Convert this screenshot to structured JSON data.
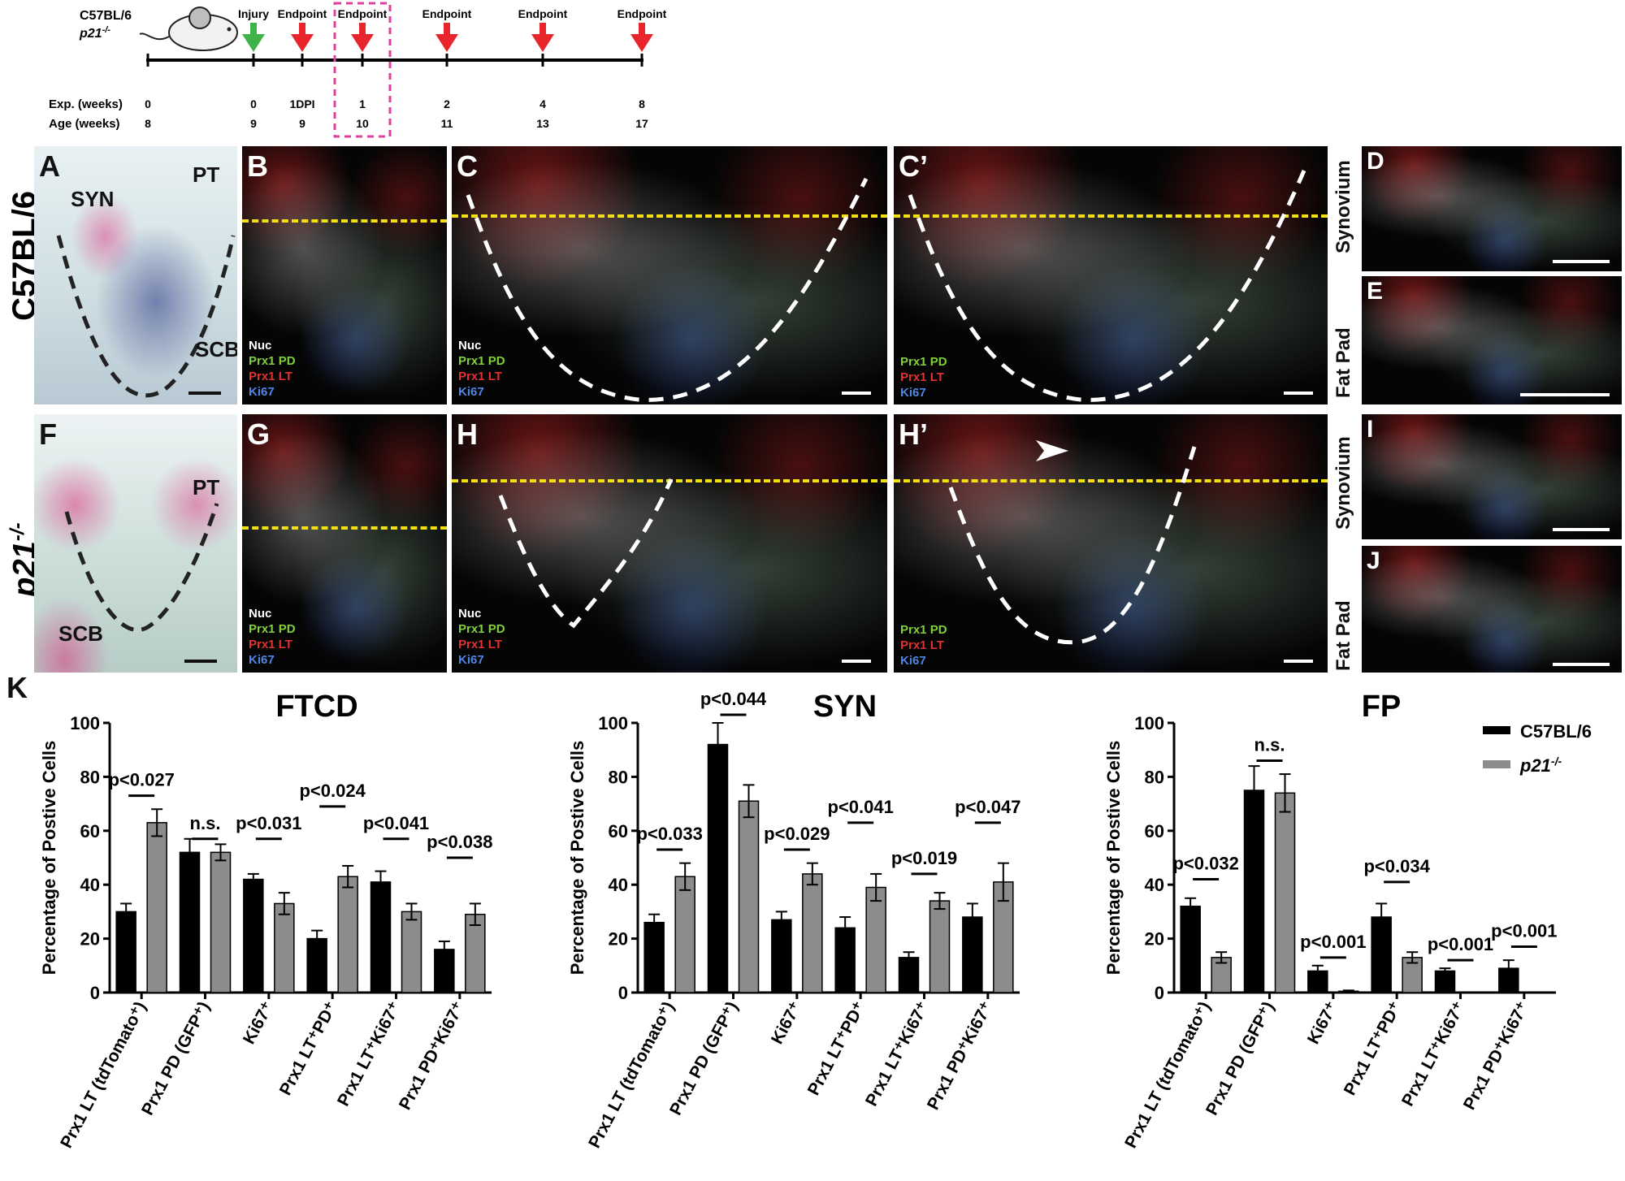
{
  "timeline": {
    "strain_line1": "C57BL/6",
    "strain_line2": "p21",
    "strain_line2_sup": "-/-",
    "row_exp_label": "Exp.  (weeks)",
    "row_age_label": "Age (weeks)",
    "points": [
      {
        "event": "",
        "exp": "0",
        "age": "8",
        "arrow": "none"
      },
      {
        "event": "Injury",
        "exp": "0",
        "age": "9",
        "arrow": "green"
      },
      {
        "event": "Endpoint",
        "exp": "1DPI",
        "age": "9",
        "arrow": "red"
      },
      {
        "event": "Endpoint",
        "exp": "1",
        "age": "10",
        "arrow": "red"
      },
      {
        "event": "Endpoint",
        "exp": "2",
        "age": "11",
        "arrow": "red"
      },
      {
        "event": "Endpoint",
        "exp": "4",
        "age": "13",
        "arrow": "red"
      },
      {
        "event": "Endpoint",
        "exp": "8",
        "age": "17",
        "arrow": "red"
      }
    ],
    "colors": {
      "green": "#3fb24a",
      "red": "#e8252b",
      "highlight": "#e040a0"
    }
  },
  "rows": {
    "top_label": "C57BL/6",
    "bottom_label": "p21",
    "bottom_label_sup": "-/-"
  },
  "panels": {
    "A": {
      "letter": "A",
      "tags": [
        "SYN",
        "PT",
        "SCB"
      ]
    },
    "B": {
      "letter": "B"
    },
    "C": {
      "letter": "C"
    },
    "Cp": {
      "letter": "C’"
    },
    "D": {
      "letter": "D",
      "side": "Synovium"
    },
    "E": {
      "letter": "E",
      "side": "Fat Pad"
    },
    "F": {
      "letter": "F",
      "tags": [
        "PT",
        "SCB"
      ]
    },
    "G": {
      "letter": "G"
    },
    "H": {
      "letter": "H"
    },
    "Hp": {
      "letter": "H’"
    },
    "I": {
      "letter": "I",
      "side": "Synovium"
    },
    "J": {
      "letter": "J",
      "side": "Fat Pad"
    }
  },
  "stain_legend": {
    "nuc": "Nuc",
    "pd": "Prx1 PD",
    "lt": "Prx1 LT",
    "ki": "Ki67"
  },
  "chart_panel_letter": "K",
  "chart_data": [
    {
      "type": "bar",
      "title": "FTCD",
      "ylabel": "Percentage of Postive Cells",
      "ylim": [
        0,
        100
      ],
      "yticks": [
        0,
        20,
        40,
        60,
        80,
        100
      ],
      "categories": [
        "Prx1 LT (tdTomato⁺)",
        "Prx1 PD (GFP⁺)",
        "Ki67⁺",
        "Prx1 LT⁺PD⁺",
        "Prx1 LT⁺Ki67⁺",
        "Prx1 PD⁺Ki67⁺"
      ],
      "series": [
        {
          "name": "C57BL/6",
          "color": "#000000",
          "values": [
            30,
            52,
            42,
            20,
            41,
            16
          ],
          "errors": [
            3,
            5,
            2,
            3,
            4,
            3
          ]
        },
        {
          "name": "p21-/-",
          "color": "#8c8c8c",
          "values": [
            63,
            52,
            33,
            43,
            30,
            29
          ],
          "errors": [
            5,
            3,
            4,
            4,
            3,
            4
          ]
        }
      ],
      "pvalues": [
        "p<0.027",
        "n.s.",
        "p<0.031",
        "p<0.024",
        "p<0.041",
        "p<0.038"
      ],
      "plevels": [
        73,
        57,
        57,
        69,
        57,
        50
      ]
    },
    {
      "type": "bar",
      "title": "SYN",
      "ylabel": "Percentage of Postive Cells",
      "ylim": [
        0,
        100
      ],
      "yticks": [
        0,
        20,
        40,
        60,
        80,
        100
      ],
      "categories": [
        "Prx1 LT (tdTomato⁺)",
        "Prx1 PD (GFP⁺)",
        "Ki67⁺",
        "Prx1 LT⁺PD⁺",
        "Prx1 LT⁺Ki67⁺",
        "Prx1 PD⁺Ki67⁺"
      ],
      "series": [
        {
          "name": "C57BL/6",
          "color": "#000000",
          "values": [
            26,
            92,
            27,
            24,
            13,
            28
          ],
          "errors": [
            3,
            8,
            3,
            4,
            2,
            5
          ]
        },
        {
          "name": "p21-/-",
          "color": "#8c8c8c",
          "values": [
            43,
            71,
            44,
            39,
            34,
            41
          ],
          "errors": [
            5,
            6,
            4,
            5,
            3,
            7
          ]
        }
      ],
      "pvalues": [
        "p<0.033",
        "p<0.044",
        "p<0.029",
        "p<0.041",
        "p<0.019",
        "p<0.047"
      ],
      "plevels": [
        53,
        103,
        53,
        63,
        44,
        63
      ]
    },
    {
      "type": "bar",
      "title": "FP",
      "ylabel": "Percentage of Postive Cells",
      "ylim": [
        0,
        100
      ],
      "yticks": [
        0,
        20,
        40,
        60,
        80,
        100
      ],
      "categories": [
        "Prx1 LT (tdTomato⁺)",
        "Prx1 PD (GFP⁺)",
        "Ki67⁺",
        "Prx1 LT⁺PD⁺",
        "Prx1 LT⁺Ki67⁺",
        "Prx1 PD⁺Ki67⁺"
      ],
      "series": [
        {
          "name": "C57BL/6",
          "color": "#000000",
          "values": [
            32,
            75,
            8,
            28,
            8,
            9
          ],
          "errors": [
            3,
            9,
            2,
            5,
            1,
            3
          ]
        },
        {
          "name": "p21-/-",
          "color": "#8c8c8c",
          "values": [
            13,
            74,
            0.5,
            13,
            0,
            0
          ],
          "errors": [
            2,
            7,
            0.3,
            2,
            0,
            0
          ]
        }
      ],
      "pvalues": [
        "p<0.032",
        "n.s.",
        "p<0.001",
        "p<0.034",
        "p<0.001",
        "p<0.001"
      ],
      "plevels": [
        42,
        86,
        13,
        41,
        12,
        17
      ],
      "legend": {
        "position": "top-right",
        "entries": [
          "C57BL/6",
          "p21"
        ],
        "sup": [
          "",
          "-/-"
        ]
      }
    }
  ]
}
